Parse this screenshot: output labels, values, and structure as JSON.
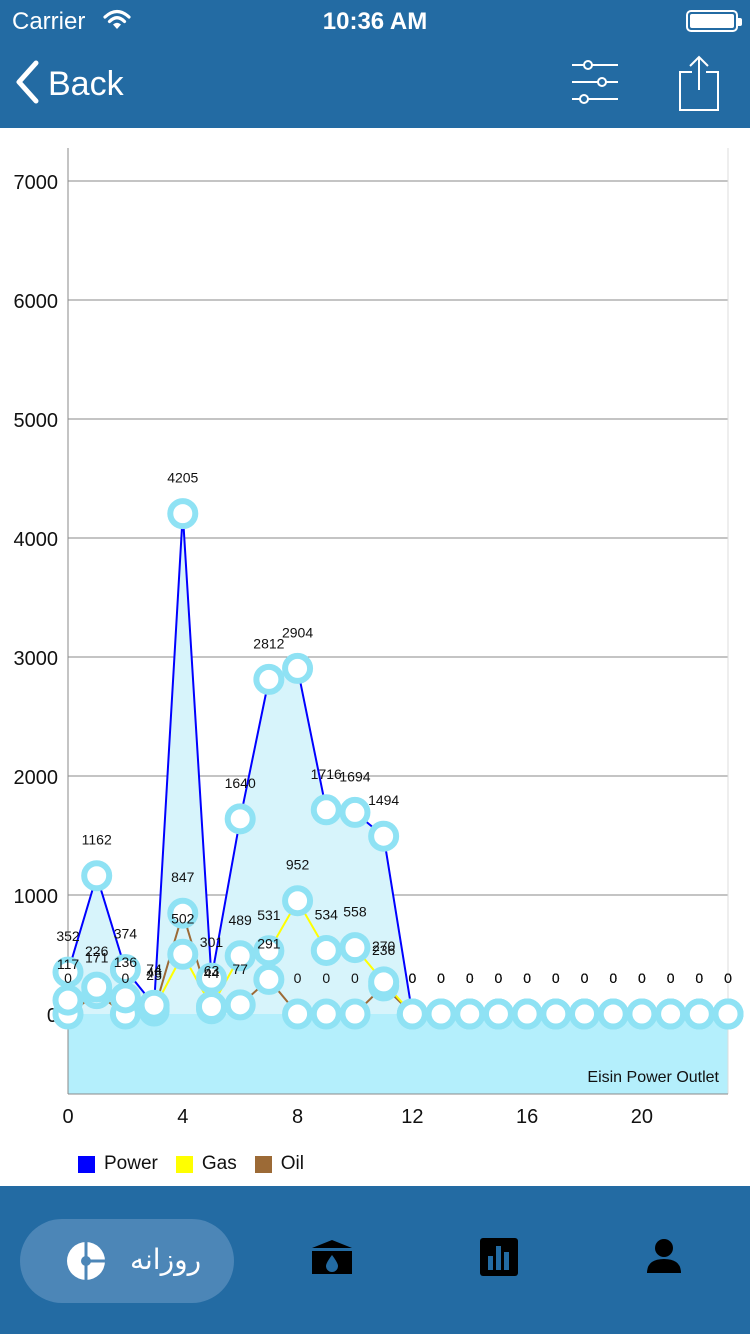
{
  "status_bar": {
    "carrier": "Carrier",
    "time": "10:36 AM"
  },
  "nav": {
    "back_label": "Back",
    "icons": {
      "filter": "sliders-icon",
      "share": "share-icon"
    }
  },
  "chart_data": {
    "type": "area",
    "title": "",
    "xlabel": "",
    "ylabel": "",
    "x": [
      0,
      1,
      2,
      3,
      4,
      5,
      6,
      7,
      8,
      9,
      10,
      11,
      12,
      13,
      14,
      15,
      16,
      17,
      18,
      19,
      20,
      21,
      22,
      23
    ],
    "xlim": [
      0,
      23
    ],
    "ylim": [
      -650,
      7200
    ],
    "y_ticks": [
      0,
      1000,
      2000,
      3000,
      4000,
      5000,
      6000,
      7000
    ],
    "x_ticks": [
      0,
      4,
      8,
      12,
      16,
      20
    ],
    "grid": true,
    "legend_position": "bottom-left",
    "colors": {
      "power": "#0000ff",
      "gas": "#ffff00",
      "oil": "#9c6a36",
      "marker": "#8fe2f4",
      "fill": "#d7f4fb",
      "band": "#b4effc"
    },
    "series": [
      {
        "name": "Power",
        "values": [
          352,
          1162,
          374,
          74,
          4205,
          301,
          1640,
          2812,
          2904,
          1716,
          1694,
          1494,
          0,
          0,
          0,
          0,
          0,
          0,
          0,
          0,
          0,
          0,
          0,
          0
        ]
      },
      {
        "name": "Gas",
        "values": [
          117,
          226,
          136,
          46,
          502,
          63,
          489,
          531,
          952,
          534,
          558,
          270,
          0,
          0,
          0,
          0,
          0,
          0,
          0,
          0,
          0,
          0,
          0,
          0
        ]
      },
      {
        "name": "Oil",
        "values": [
          0,
          171,
          0,
          25,
          847,
          44,
          77,
          291,
          0,
          0,
          0,
          236,
          0,
          0,
          0,
          0,
          0,
          0,
          0,
          0,
          0,
          0,
          0,
          0
        ]
      }
    ],
    "annotation": "Eisin Power Outlet"
  },
  "tabs": {
    "daily_label": "روزانه",
    "icons": {
      "daily": "pie-chart-icon",
      "tank": "oil-tank-icon",
      "stats": "bar-chart-icon",
      "profile": "user-icon"
    }
  }
}
